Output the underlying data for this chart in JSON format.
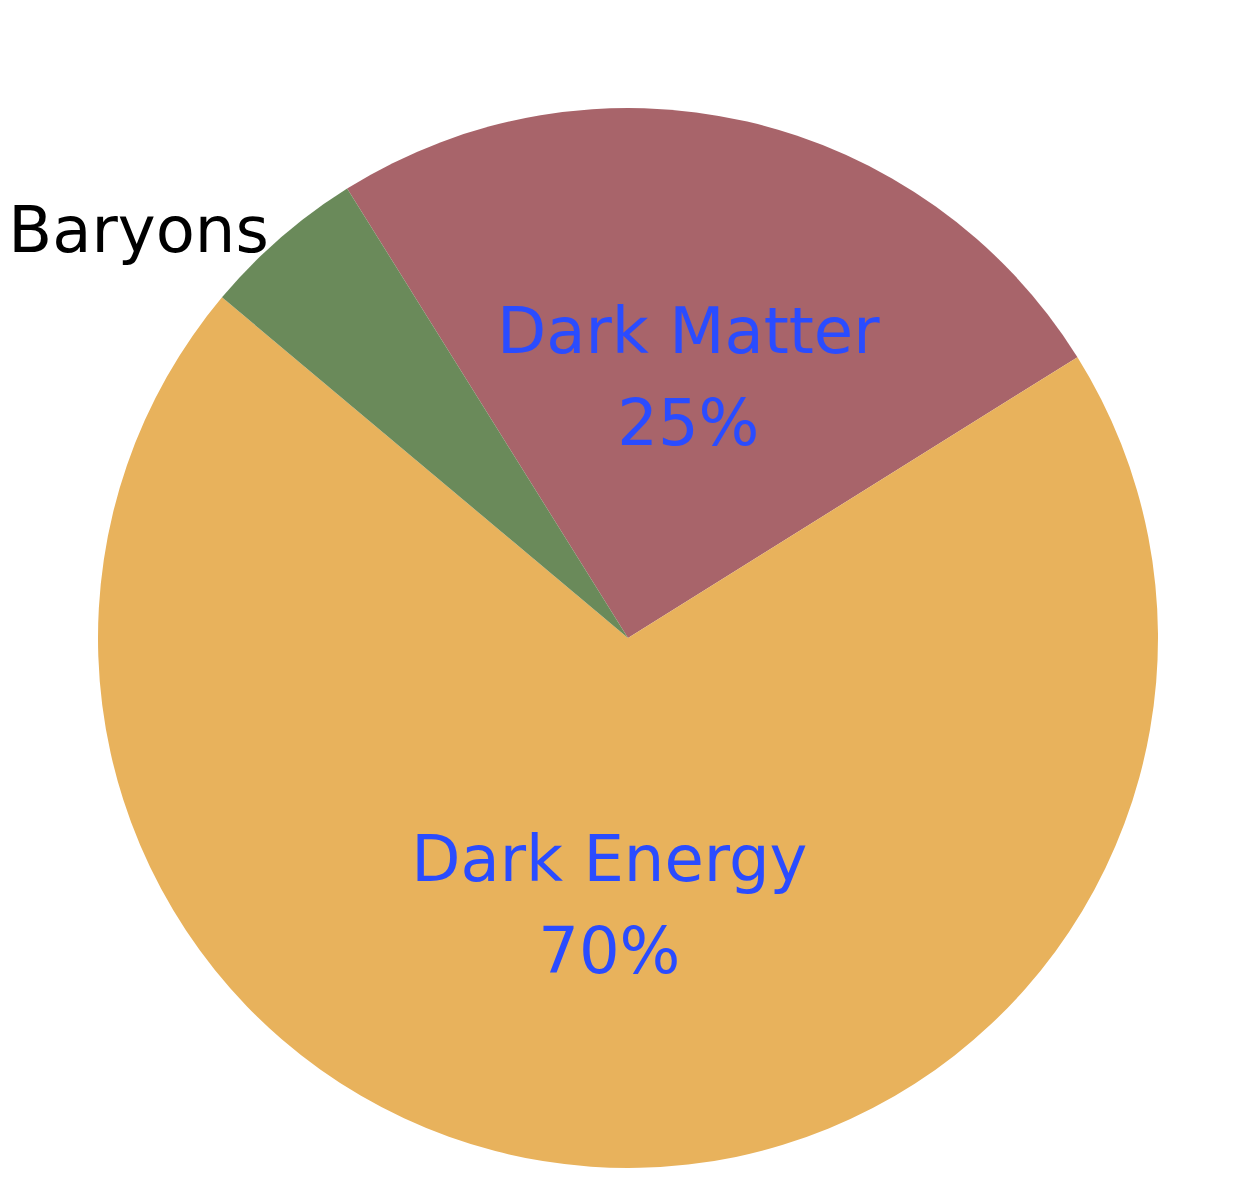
{
  "chart_data": {
    "type": "pie",
    "categories": [
      "Dark Matter",
      "Dark Energy",
      "Baryons"
    ],
    "values": [
      25,
      70,
      5
    ],
    "colors": [
      "#a8646a",
      "#e8b25c",
      "#6a8a5a"
    ],
    "value_labels": [
      "25%",
      "70%",
      null
    ]
  }
}
